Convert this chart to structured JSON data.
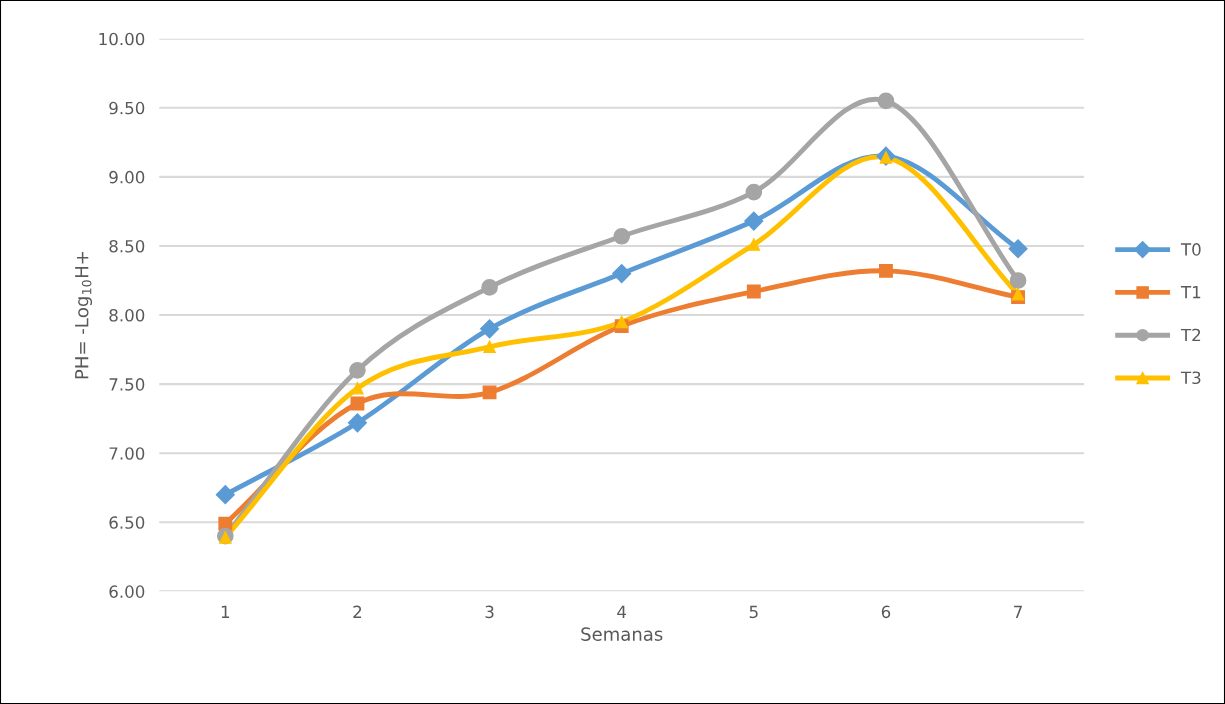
{
  "chart_data": {
    "type": "line",
    "xlabel": "Semanas",
    "ylabel": "PH= -Log$_{10}$H+",
    "categories": [
      "1",
      "2",
      "3",
      "4",
      "5",
      "6",
      "7"
    ],
    "ylim": [
      6.0,
      10.0
    ],
    "yticks": [
      {
        "value": 6.0,
        "label": "6.00"
      },
      {
        "value": 6.5,
        "label": "6.50"
      },
      {
        "value": 7.0,
        "label": "7.00"
      },
      {
        "value": 7.5,
        "label": "7.50"
      },
      {
        "value": 8.0,
        "label": "8.00"
      },
      {
        "value": 8.5,
        "label": "8.50"
      },
      {
        "value": 9.0,
        "label": "9.00"
      },
      {
        "value": 9.5,
        "label": "9.50"
      },
      {
        "value": 10.0,
        "label": "10.00"
      }
    ],
    "grid": "y",
    "legend": "right",
    "line_style": "solid",
    "series": [
      {
        "name": "T0",
        "color": "#5b9bd5",
        "marker": "diamond",
        "values": [
          6.7,
          7.22,
          7.9,
          8.3,
          8.68,
          9.15,
          8.48
        ]
      },
      {
        "name": "T1",
        "color": "#ed7d31",
        "marker": "square",
        "values": [
          6.49,
          7.36,
          7.44,
          7.92,
          8.17,
          8.32,
          8.13
        ]
      },
      {
        "name": "T2",
        "color": "#a5a5a5",
        "marker": "circle",
        "values": [
          6.4,
          7.6,
          8.2,
          8.57,
          8.89,
          9.55,
          8.25
        ]
      },
      {
        "name": "T3",
        "color": "#ffc000",
        "marker": "triangle",
        "values": [
          6.39,
          7.47,
          7.77,
          7.95,
          8.51,
          9.14,
          8.15
        ]
      }
    ]
  }
}
